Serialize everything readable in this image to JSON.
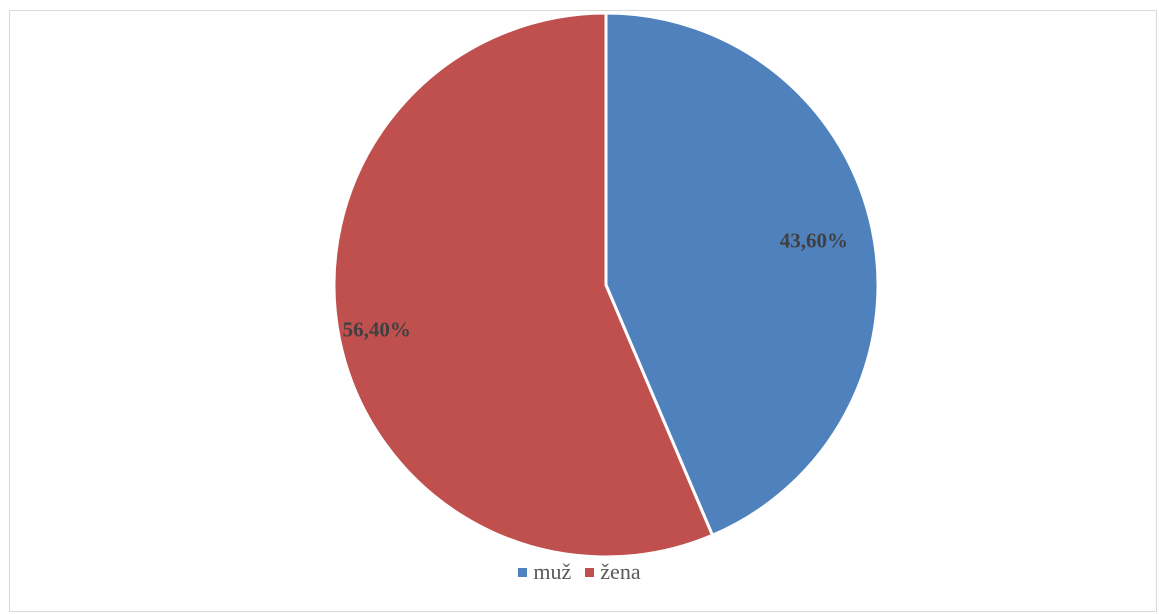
{
  "chart_data": {
    "type": "pie",
    "title": "",
    "categories": [
      "muž",
      "žena"
    ],
    "values": [
      43.6,
      56.4
    ],
    "data_labels": [
      "43,60%",
      "56,40%"
    ],
    "colors": [
      "#4f81bd",
      "#c0504d"
    ],
    "start_angle_deg": 0,
    "direction": "clockwise",
    "legend_position": "bottom"
  }
}
